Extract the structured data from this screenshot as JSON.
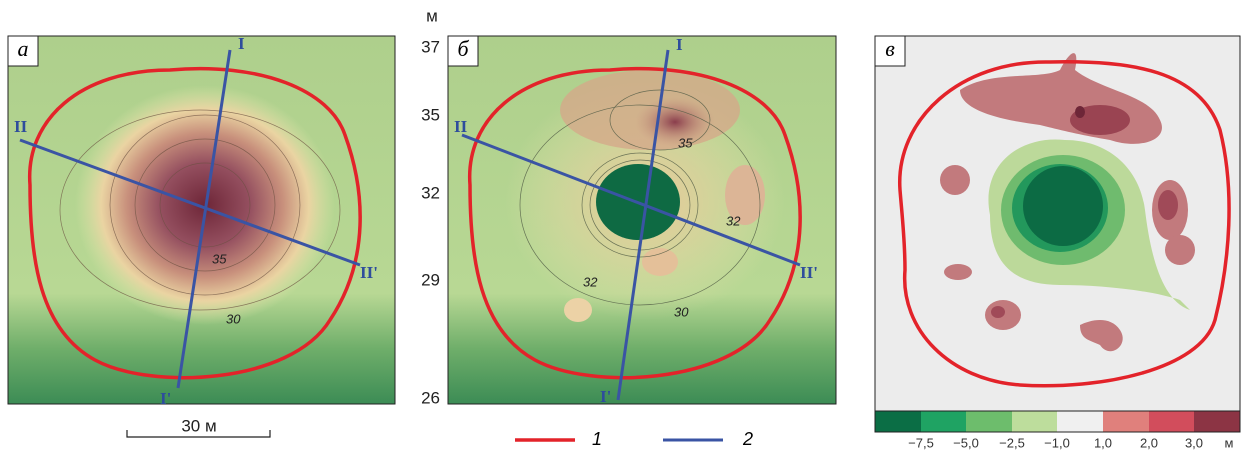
{
  "panels": [
    {
      "label": "а",
      "profiles": [
        "I",
        "I'",
        "II",
        "II'"
      ],
      "contour_labels": [
        "35",
        "30"
      ]
    },
    {
      "label": "б",
      "profiles": [
        "I",
        "I'",
        "II",
        "II'"
      ],
      "contour_labels": [
        "35",
        "32",
        "32",
        "30"
      ]
    },
    {
      "label": "в"
    }
  ],
  "elevation_scale": {
    "unit": "м",
    "ticks": [
      "37",
      "35",
      "32",
      "29",
      "26"
    ]
  },
  "scale_bar": "30 м",
  "legend": [
    "1",
    "2"
  ],
  "colorbar": {
    "labels": [
      "−7,5",
      "−5,0",
      "−2,5",
      "−1,0",
      "1,0",
      "2,0",
      "3,0"
    ],
    "unit": "м"
  }
}
